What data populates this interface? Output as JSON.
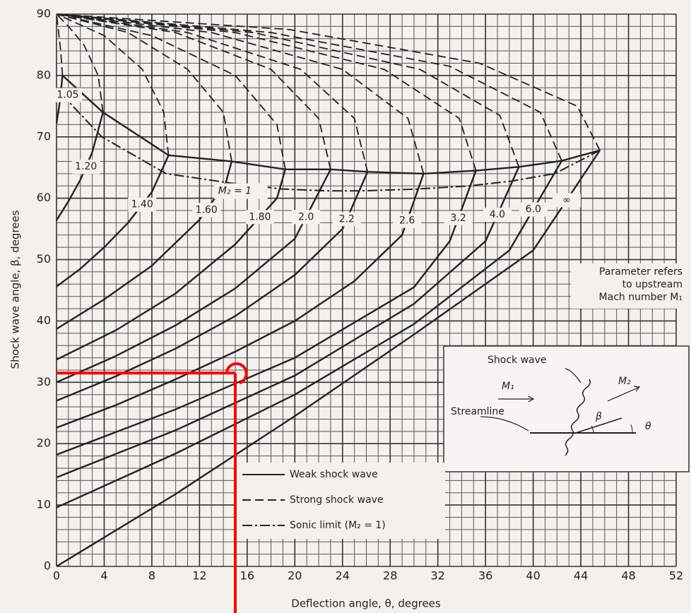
{
  "chart_data": {
    "type": "line",
    "x_label": "Deflection angle, θ, degrees",
    "y_label": "Shock wave angle, β, degrees",
    "xlim": [
      0,
      52
    ],
    "xticks": [
      0,
      4,
      8,
      12,
      16,
      20,
      24,
      28,
      32,
      36,
      40,
      44,
      48,
      52
    ],
    "ylim": [
      0,
      90
    ],
    "yticks": [
      0,
      10,
      20,
      30,
      40,
      50,
      60,
      70,
      80,
      90
    ],
    "grid": true,
    "minor_grid": {
      "x_step": 1,
      "y_step": 2
    },
    "color": "#222222",
    "curves": [
      {
        "label": "1.05",
        "weak": {
          "x": [
            0,
            0.3,
            0.5
          ],
          "values": [
            72.2,
            76,
            80
          ]
        },
        "strong": {
          "x": [
            0.5,
            0.35,
            0.15,
            0
          ],
          "values": [
            80,
            84,
            87.5,
            90
          ]
        }
      },
      {
        "label": "1.20",
        "weak": {
          "x": [
            0,
            1,
            2,
            3,
            3.9
          ],
          "values": [
            56.4,
            59.5,
            63,
            67.5,
            74
          ]
        },
        "strong": {
          "x": [
            3.9,
            3.5,
            2.3,
            1,
            0
          ],
          "values": [
            74,
            80,
            85,
            88,
            90
          ]
        }
      },
      {
        "label": "1.40",
        "weak": {
          "x": [
            0,
            2,
            4,
            6,
            8,
            9.4
          ],
          "values": [
            45.6,
            48.5,
            52,
            56,
            61,
            67
          ]
        },
        "strong": {
          "x": [
            9.4,
            9,
            7.2,
            4,
            0
          ],
          "values": [
            67,
            74,
            81,
            86.5,
            90
          ]
        }
      },
      {
        "label": "1.60",
        "weak": {
          "x": [
            0,
            4,
            8,
            12,
            14.2,
            14.7
          ],
          "values": [
            38.7,
            43.5,
            49,
            56.5,
            62.5,
            66
          ]
        },
        "strong": {
          "x": [
            14.7,
            14,
            11,
            6,
            0
          ],
          "values": [
            66,
            74,
            81,
            87,
            90
          ]
        }
      },
      {
        "label": "1.80",
        "weak": {
          "x": [
            0,
            5,
            10,
            15,
            18.5,
            19.2
          ],
          "values": [
            33.7,
            38.5,
            44.5,
            52.5,
            60,
            64.7
          ]
        },
        "strong": {
          "x": [
            19.2,
            18.5,
            15,
            8,
            0
          ],
          "values": [
            64.7,
            72,
            80,
            86.5,
            90
          ]
        }
      },
      {
        "label": "2.0",
        "weak": {
          "x": [
            0,
            5,
            10,
            15,
            20,
            23
          ],
          "values": [
            30,
            34.3,
            39.3,
            45.3,
            53.4,
            64.7
          ]
        },
        "strong": {
          "x": [
            23,
            22,
            18,
            10,
            0
          ],
          "values": [
            64.7,
            73,
            81,
            87,
            90
          ]
        }
      },
      {
        "label": "2.2",
        "weak": {
          "x": [
            0,
            5,
            10,
            15,
            20,
            24,
            26.1
          ],
          "values": [
            27,
            31,
            35.5,
            40.8,
            47.5,
            55,
            64.3
          ]
        },
        "strong": {
          "x": [
            26.1,
            25,
            20.5,
            11,
            0
          ],
          "values": [
            64.3,
            73,
            81,
            87,
            90
          ]
        }
      },
      {
        "label": "2.6",
        "weak": {
          "x": [
            0,
            5,
            10,
            15,
            20,
            25,
            29,
            30.8
          ],
          "values": [
            22.6,
            26.3,
            30.5,
            35,
            40,
            46.5,
            54,
            64
          ]
        },
        "strong": {
          "x": [
            30.8,
            29.5,
            24,
            13,
            0
          ],
          "values": [
            64,
            73,
            81,
            87,
            90
          ]
        }
      },
      {
        "label": "3.2",
        "weak": {
          "x": [
            0,
            10,
            20,
            30,
            33,
            35.2
          ],
          "values": [
            18.2,
            25.6,
            34,
            45.5,
            53,
            64.5
          ]
        },
        "strong": {
          "x": [
            35.2,
            33.8,
            27.5,
            15,
            0
          ],
          "values": [
            64.5,
            73,
            81,
            87,
            90
          ]
        }
      },
      {
        "label": "4.0",
        "weak": {
          "x": [
            0,
            10,
            20,
            30,
            36,
            38.8
          ],
          "values": [
            14.5,
            22.2,
            31.1,
            42.8,
            53,
            65.1
          ]
        },
        "strong": {
          "x": [
            38.8,
            37.2,
            30.5,
            16.5,
            0
          ],
          "values": [
            65.1,
            73.5,
            81,
            87,
            90
          ]
        }
      },
      {
        "label": "6.0",
        "weak": {
          "x": [
            0,
            10,
            20,
            30,
            38,
            42.4
          ],
          "values": [
            9.6,
            18.4,
            28,
            39.5,
            51.5,
            66.1
          ]
        },
        "strong": {
          "x": [
            42.4,
            40.6,
            33,
            18,
            0
          ],
          "values": [
            66.1,
            74,
            81.5,
            87,
            90
          ]
        }
      },
      {
        "label": "∞",
        "weak": {
          "x": [
            0,
            10,
            20,
            30,
            40,
            45.6
          ],
          "values": [
            0,
            11.8,
            24.5,
            37.8,
            51.5,
            67.8
          ]
        },
        "strong": {
          "x": [
            45.6,
            43.7,
            35.5,
            19.5,
            0
          ],
          "values": [
            67.8,
            75,
            82,
            87.5,
            90
          ]
        }
      }
    ],
    "max_deflection": {
      "x": [
        0.5,
        3.9,
        9.4,
        14.7,
        19.2,
        23,
        26.1,
        30.8,
        35.2,
        38.8,
        42.4,
        45.6
      ],
      "values": [
        80,
        74,
        67,
        66,
        64.7,
        64.7,
        64.3,
        64,
        64.5,
        65.1,
        66.1,
        67.8
      ]
    },
    "sonic_limit": {
      "label": "M₂ = 1",
      "x": [
        0.4,
        3.8,
        9.2,
        14.5,
        18.9,
        22.7,
        25.7,
        30.3,
        34.6,
        38.2,
        41.8,
        45.6
      ],
      "values": [
        77,
        70,
        64,
        62.5,
        61.5,
        61.2,
        61.2,
        61.5,
        62,
        62.8,
        64,
        67.8
      ]
    },
    "legend": [
      {
        "label": "Weak shock wave",
        "style": "solid"
      },
      {
        "label": "Strong shock wave",
        "style": "dashed"
      },
      {
        "label": "Sonic limit (M₂ = 1)",
        "style": "dashdot"
      }
    ],
    "note": [
      "Parameter refers",
      "to upstream",
      "Mach number M₁"
    ],
    "inset": {
      "shock_wave": "Shock wave",
      "m1": "M₁",
      "m2": "M₂",
      "streamline": "Streamline",
      "beta": "β",
      "theta": "θ"
    },
    "highlight": {
      "x": 15,
      "y": 31.5,
      "color": "#ff0000"
    }
  }
}
